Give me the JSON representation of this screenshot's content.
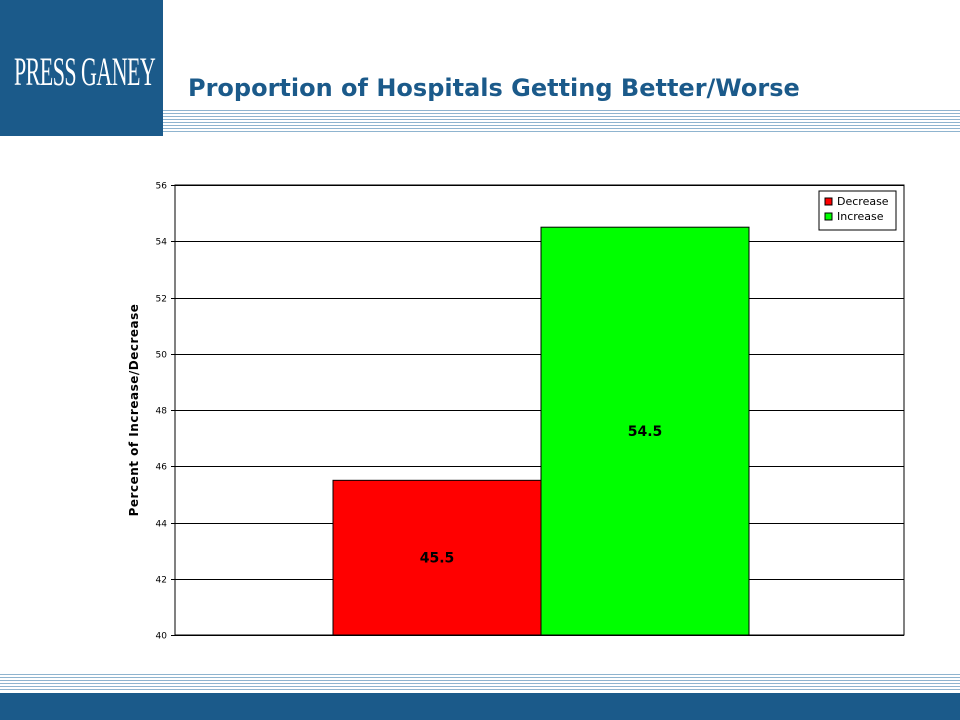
{
  "header": {
    "logo_text": "PRESS GANEY",
    "title": "Proportion of Hospitals Getting Better/Worse"
  },
  "colors": {
    "brand": "#1b5a8a",
    "stripe": "#8fb4cf"
  },
  "chart_data": {
    "type": "bar",
    "title": "",
    "xlabel": "",
    "ylabel": "Percent of Increase/Decrease",
    "ylim": [
      40,
      56
    ],
    "yticks": [
      40,
      42,
      44,
      46,
      48,
      50,
      52,
      54,
      56
    ],
    "grid": true,
    "legend_position": "top-right",
    "series": [
      {
        "name": "Decrease",
        "value": 45.5,
        "label": "45.5",
        "color": "#ff0000"
      },
      {
        "name": "Increase",
        "value": 54.5,
        "label": "54.5",
        "color": "#00ff00"
      }
    ]
  }
}
